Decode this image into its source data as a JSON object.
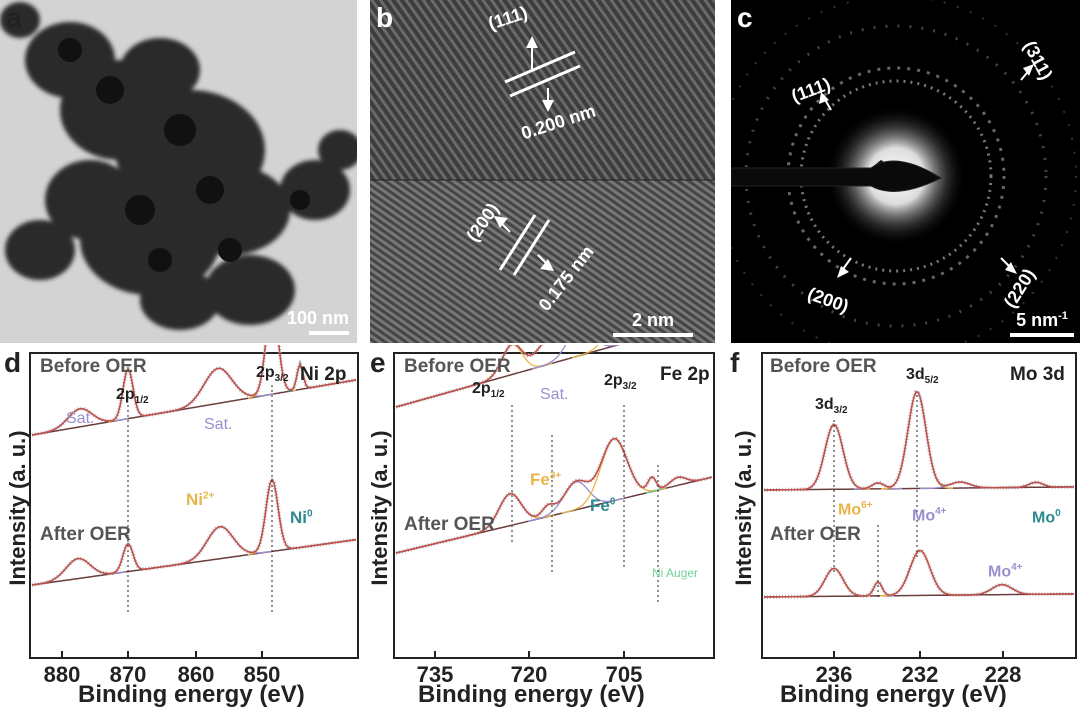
{
  "panels": {
    "a": {
      "label": "a",
      "scale": "100 nm"
    },
    "b": {
      "label": "b",
      "scale": "2 nm",
      "top": {
        "plane": "(111)",
        "d": "0.200 nm"
      },
      "bottom": {
        "plane": "(200)",
        "d": "0.175 nm"
      }
    },
    "c": {
      "label": "c",
      "scale": "5 nm",
      "scale_sup": "-1",
      "rings": [
        "(111)",
        "(311)",
        "(200)",
        "(220)"
      ]
    },
    "d": {
      "label": "d",
      "element": "Ni 2p",
      "before": "Before OER",
      "after": "After OER",
      "sat": "Sat.",
      "p12": "2p",
      "p12sub": "1/2",
      "p32": "2p",
      "p32sub": "3/2",
      "ni2": "Ni",
      "ni2sup": "2+",
      "ni0": "Ni",
      "ni0sup": "0",
      "xticks": [
        "880",
        "870",
        "860",
        "850"
      ]
    },
    "e": {
      "label": "e",
      "element": "Fe 2p",
      "before": "Before OER",
      "after": "After OER",
      "sat": "Sat.",
      "p12": "2p",
      "p12sub": "1/2",
      "p32": "2p",
      "p32sub": "3/2",
      "fe3": "Fe",
      "fe3sup": "3+",
      "fe0": "Fe",
      "fe0sup": "0",
      "auger": "Ni Auger",
      "xticks": [
        "735",
        "720",
        "705"
      ]
    },
    "f": {
      "label": "f",
      "element": "Mo 3d",
      "before": "Before OER",
      "after": "After OER",
      "d32": "3d",
      "d32sub": "3/2",
      "d52": "3d",
      "d52sub": "5/2",
      "mo6": "Mo",
      "mo6sup": "6+",
      "mo4": "Mo",
      "mo4sup": "4+",
      "mo4b": "Mo",
      "mo4bsup": "4+",
      "mo0": "Mo",
      "mo0sup": "0",
      "xticks": [
        "236",
        "232",
        "228"
      ]
    }
  },
  "axes": {
    "ylabel": "Intensity (a. u.)",
    "xlabel": "Binding energy (eV)"
  },
  "colors": {
    "data": "#aaaaaa",
    "fit": "#c0504d",
    "ni2": "#e8b54a",
    "ni0": "#2b8a8f",
    "sat": "#9a8fd0",
    "bg": "#6b3d3d",
    "auger": "#6fcf97",
    "mo6": "#e8b54a",
    "mo4": "#9a8fd0",
    "mo0": "#2b8a8f"
  }
}
